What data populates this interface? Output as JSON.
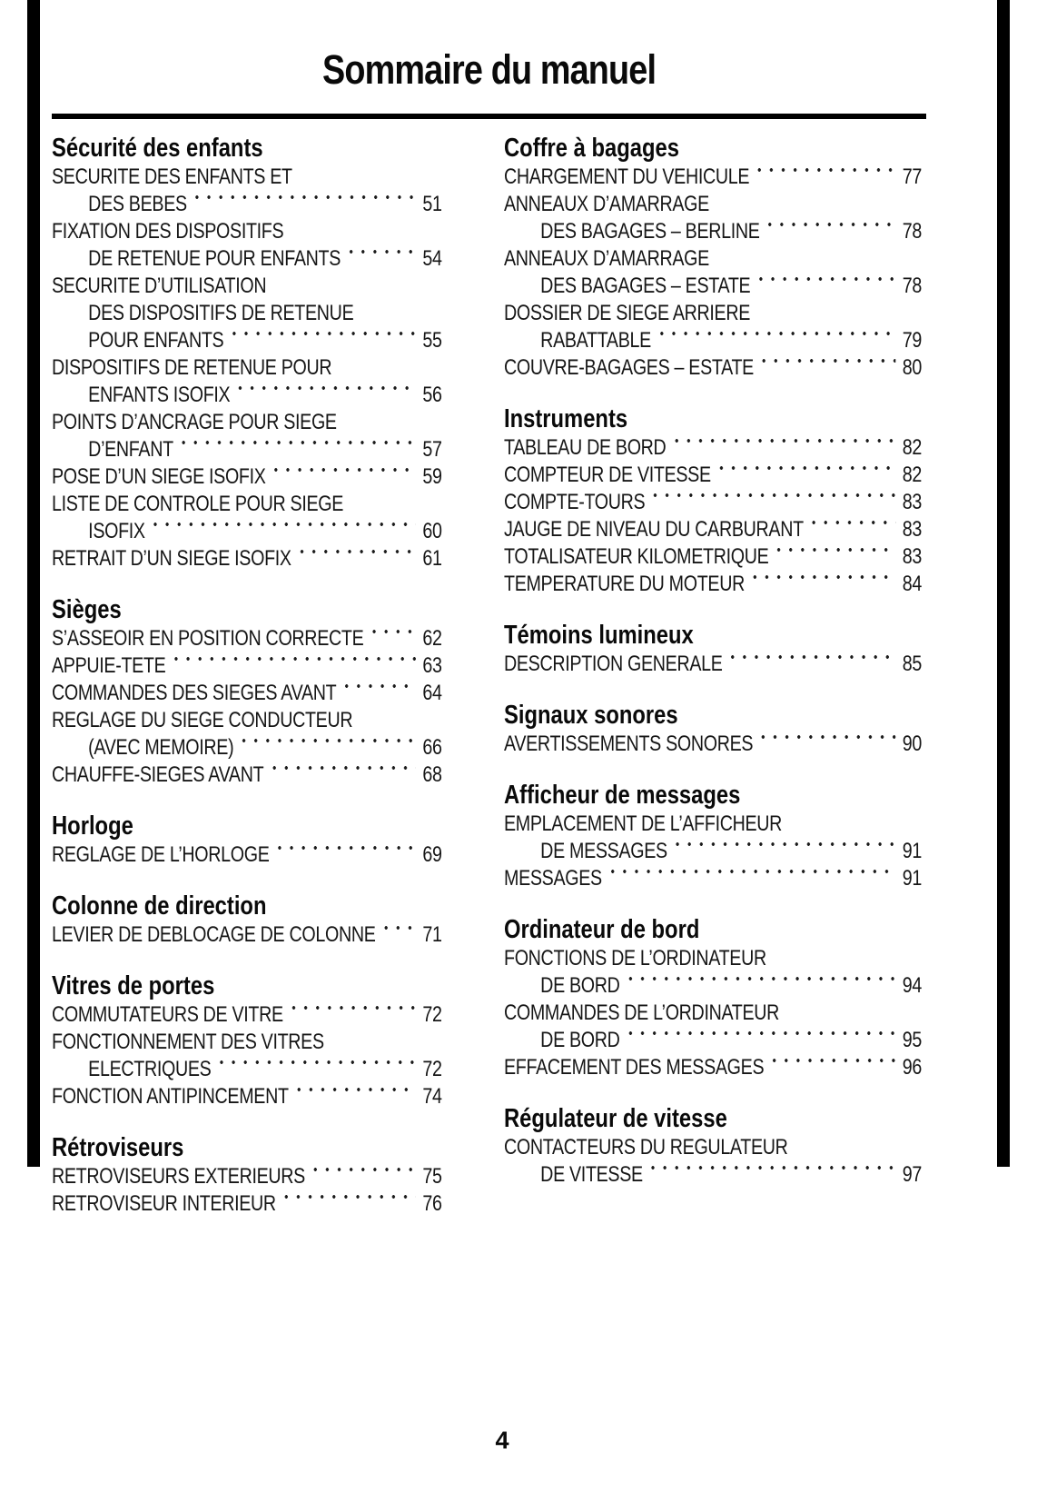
{
  "page": {
    "title": "Sommaire du manuel",
    "page_number": "4",
    "text_color": "#161616",
    "bar_color": "#000000"
  },
  "columns": [
    {
      "sections": [
        {
          "title": "Sécurité des enfants",
          "entries": [
            {
              "lines": [
                "SECURITE DES ENFANTS ET",
                "DES BEBES"
              ],
              "page": "51"
            },
            {
              "lines": [
                "FIXATION DES DISPOSITIFS",
                "DE RETENUE POUR ENFANTS"
              ],
              "page": "54"
            },
            {
              "lines": [
                "SECURITE D’UTILISATION",
                "DES DISPOSITIFS DE RETENUE",
                "POUR ENFANTS"
              ],
              "page": "55"
            },
            {
              "lines": [
                "DISPOSITIFS DE RETENUE POUR",
                "ENFANTS ISOFIX"
              ],
              "page": "56"
            },
            {
              "lines": [
                "POINTS D’ANCRAGE POUR SIEGE",
                "D’ENFANT"
              ],
              "page": "57"
            },
            {
              "lines": [
                "POSE D’UN SIEGE ISOFIX"
              ],
              "page": "59"
            },
            {
              "lines": [
                "LISTE DE CONTROLE POUR SIEGE",
                "ISOFIX"
              ],
              "page": "60"
            },
            {
              "lines": [
                "RETRAIT D’UN SIEGE ISOFIX"
              ],
              "page": "61"
            }
          ]
        },
        {
          "title": "Sièges",
          "entries": [
            {
              "lines": [
                "S’ASSEOIR EN POSITION CORRECTE"
              ],
              "page": "62"
            },
            {
              "lines": [
                "APPUIE-TETE"
              ],
              "page": "63"
            },
            {
              "lines": [
                "COMMANDES DES SIEGES AVANT"
              ],
              "page": "64"
            },
            {
              "lines": [
                "REGLAGE DU SIEGE CONDUCTEUR",
                "(AVEC MEMOIRE)"
              ],
              "page": "66"
            },
            {
              "lines": [
                "CHAUFFE-SIEGES AVANT"
              ],
              "page": "68"
            }
          ]
        },
        {
          "title": "Horloge",
          "entries": [
            {
              "lines": [
                "REGLAGE DE L’HORLOGE"
              ],
              "page": "69"
            }
          ]
        },
        {
          "title": "Colonne de direction",
          "entries": [
            {
              "lines": [
                "LEVIER DE DEBLOCAGE DE COLONNE"
              ],
              "page": "71"
            }
          ]
        },
        {
          "title": "Vitres de portes",
          "entries": [
            {
              "lines": [
                "COMMUTATEURS DE VITRE"
              ],
              "page": "72"
            },
            {
              "lines": [
                "FONCTIONNEMENT DES VITRES",
                "ELECTRIQUES"
              ],
              "page": "72"
            },
            {
              "lines": [
                "FONCTION ANTIPINCEMENT"
              ],
              "page": "74"
            }
          ]
        },
        {
          "title": "Rétroviseurs",
          "entries": [
            {
              "lines": [
                "RETROVISEURS EXTERIEURS"
              ],
              "page": "75"
            },
            {
              "lines": [
                "RETROVISEUR INTERIEUR"
              ],
              "page": "76"
            }
          ]
        }
      ]
    },
    {
      "sections": [
        {
          "title": "Coffre à bagages",
          "entries": [
            {
              "lines": [
                "CHARGEMENT DU VEHICULE"
              ],
              "page": "77"
            },
            {
              "lines": [
                "ANNEAUX D’AMARRAGE",
                "DES BAGAGES – BERLINE"
              ],
              "page": "78"
            },
            {
              "lines": [
                "ANNEAUX D’AMARRAGE",
                "DES BAGAGES – ESTATE"
              ],
              "page": "78"
            },
            {
              "lines": [
                "DOSSIER DE SIEGE ARRIERE",
                "RABATTABLE"
              ],
              "page": "79"
            },
            {
              "lines": [
                "COUVRE-BAGAGES – ESTATE"
              ],
              "page": "80"
            }
          ]
        },
        {
          "title": "Instruments",
          "entries": [
            {
              "lines": [
                "TABLEAU DE BORD"
              ],
              "page": "82"
            },
            {
              "lines": [
                "COMPTEUR DE VITESSE"
              ],
              "page": "82"
            },
            {
              "lines": [
                "COMPTE-TOURS"
              ],
              "page": "83"
            },
            {
              "lines": [
                "JAUGE DE NIVEAU DU CARBURANT"
              ],
              "page": "83"
            },
            {
              "lines": [
                "TOTALISATEUR KILOMETRIQUE"
              ],
              "page": "83"
            },
            {
              "lines": [
                "TEMPERATURE DU MOTEUR"
              ],
              "page": "84"
            }
          ]
        },
        {
          "title": "Témoins lumineux",
          "entries": [
            {
              "lines": [
                "DESCRIPTION GENERALE"
              ],
              "page": "85"
            }
          ]
        },
        {
          "title": "Signaux sonores",
          "entries": [
            {
              "lines": [
                "AVERTISSEMENTS SONORES"
              ],
              "page": "90"
            }
          ]
        },
        {
          "title": "Afficheur de messages",
          "entries": [
            {
              "lines": [
                "EMPLACEMENT DE L’AFFICHEUR",
                "DE MESSAGES"
              ],
              "page": "91"
            },
            {
              "lines": [
                "MESSAGES"
              ],
              "page": "91"
            }
          ]
        },
        {
          "title": "Ordinateur de bord",
          "entries": [
            {
              "lines": [
                "FONCTIONS DE L’ORDINATEUR",
                "DE BORD"
              ],
              "page": "94"
            },
            {
              "lines": [
                "COMMANDES DE L’ORDINATEUR",
                "DE BORD"
              ],
              "page": "95"
            },
            {
              "lines": [
                "EFFACEMENT DES MESSAGES"
              ],
              "page": "96"
            }
          ]
        },
        {
          "title": "Régulateur de vitesse",
          "entries": [
            {
              "lines": [
                "CONTACTEURS DU REGULATEUR",
                "DE VITESSE"
              ],
              "page": "97"
            }
          ]
        }
      ]
    }
  ]
}
